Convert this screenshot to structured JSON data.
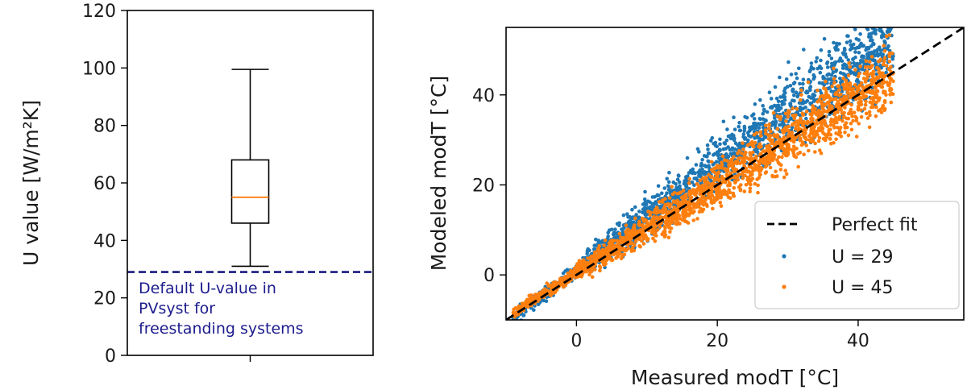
{
  "chart_data": [
    {
      "type": "box",
      "ylabel": "U value [W/m²K]",
      "ylim": [
        0,
        120
      ],
      "yticks": [
        0,
        20,
        40,
        60,
        80,
        100,
        120
      ],
      "box": {
        "whisker_low": 31,
        "q1": 46,
        "median": 55,
        "q3": 68,
        "whisker_high": 99.5
      },
      "reference_line": {
        "value": 29,
        "color": "#1a1a80",
        "style": "dashed",
        "label_lines": [
          "Default U-value in",
          "PVsyst for",
          "freestanding systems"
        ]
      },
      "colors": {
        "median": "#ff7f0e",
        "box": "#000000"
      }
    },
    {
      "type": "scatter",
      "xlabel": "Measured modT [°C]",
      "ylabel": "Modeled modT [°C]",
      "xlim": [
        -10,
        55
      ],
      "ylim": [
        -10,
        55
      ],
      "xticks": [
        0,
        20,
        40
      ],
      "yticks": [
        0,
        20,
        40
      ],
      "legend": {
        "position": "lower-right",
        "entries": [
          "Perfect fit",
          "U = 29",
          "U = 45"
        ]
      },
      "series": [
        {
          "name": "U = 29",
          "color": "#1f77b4",
          "approx_relation": "y ≈ 1.17x + 1 (x from -9 to 45)",
          "key_points": [
            [
              -9,
              -6
            ],
            [
              0,
              1
            ],
            [
              10,
              14
            ],
            [
              20,
              25
            ],
            [
              30,
              37
            ],
            [
              40,
              48
            ],
            [
              45,
              52
            ]
          ]
        },
        {
          "name": "U = 45",
          "color": "#ff7f0e",
          "approx_relation": "y ≈ 0.98x + 0.5 (x from -9 to 45)",
          "key_points": [
            [
              -9,
              -6
            ],
            [
              0,
              1
            ],
            [
              10,
              11
            ],
            [
              20,
              20
            ],
            [
              30,
              30
            ],
            [
              40,
              39
            ],
            [
              45,
              44
            ]
          ]
        },
        {
          "name": "Perfect fit",
          "style": "dashed",
          "color": "#000000",
          "x": [
            -10,
            55
          ],
          "y": [
            -10,
            55
          ]
        }
      ]
    }
  ]
}
